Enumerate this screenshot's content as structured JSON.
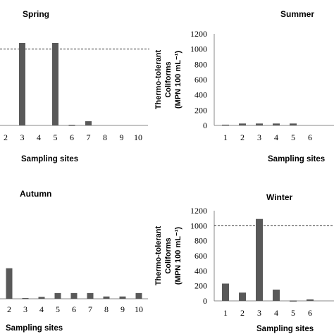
{
  "threshold_label": "",
  "chart_data": [
    {
      "type": "bar",
      "title": "Spring",
      "xlabel": "Sampling sites",
      "ylabel": "",
      "categories": [
        "2",
        "3",
        "4",
        "5",
        "6",
        "7",
        "8",
        "9",
        "10"
      ],
      "values": [
        0,
        1080,
        0,
        1080,
        8,
        55,
        0,
        0,
        0
      ],
      "ylim": [
        0,
        1200
      ],
      "reference_line": 1000,
      "color": "#595959"
    },
    {
      "type": "bar",
      "title": "Summer",
      "xlabel": "Sampling sites",
      "ylabel": "Thermo-tolerant Coliforms (MPN 100 mL⁻¹)",
      "ylabel_lines": [
        "Thermo-tolerant",
        "Coliforms",
        "(MPN 100 mL⁻¹)"
      ],
      "categories": [
        "1",
        "2",
        "3",
        "4",
        "5",
        "6"
      ],
      "values": [
        10,
        25,
        25,
        25,
        25,
        0
      ],
      "yticks": [
        "0",
        "200",
        "400",
        "600",
        "800",
        "1000",
        "1200"
      ],
      "ylim": [
        0,
        1200
      ],
      "color": "#595959"
    },
    {
      "type": "bar",
      "title": "Autumn",
      "xlabel": "Sampling sites",
      "ylabel": "",
      "categories": [
        "2",
        "3",
        "4",
        "5",
        "6",
        "7",
        "8",
        "9",
        "10"
      ],
      "values": [
        400,
        10,
        25,
        75,
        75,
        75,
        30,
        30,
        75
      ],
      "ylim": [
        0,
        1200
      ],
      "color": "#595959"
    },
    {
      "type": "bar",
      "title": "Winter",
      "xlabel": "Sampling sites",
      "ylabel": "Thermo-tolerant Coliforms (MPN 100 mL⁻¹)",
      "ylabel_lines": [
        "Thermo-tolerant",
        "Coliforms",
        "(MPN 100 mL⁻¹)"
      ],
      "categories": [
        "1",
        "2",
        "3",
        "4",
        "5",
        "6"
      ],
      "values": [
        230,
        110,
        1090,
        150,
        5,
        20
      ],
      "yticks": [
        "0",
        "200",
        "400",
        "600",
        "800",
        "1000",
        "1200"
      ],
      "ylim": [
        0,
        1200
      ],
      "reference_line": 1000,
      "color": "#595959"
    }
  ]
}
